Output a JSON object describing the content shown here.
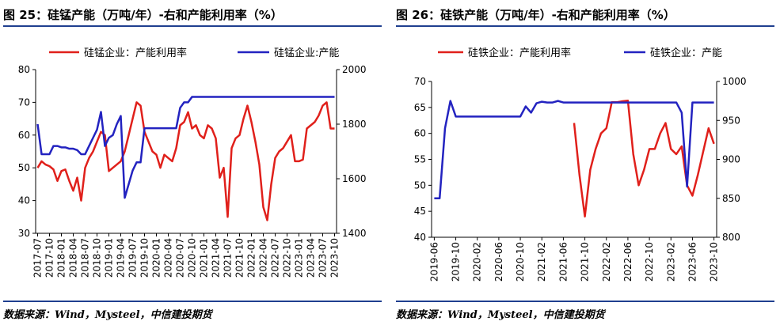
{
  "chart_data": [
    {
      "type": "line",
      "title": "图 25：硅锰产能（万吨/年）-右和产能利用率（%）",
      "source": "数据来源：Wind，Mysteel，中信建投期货",
      "categories": [
        "2017-07",
        null,
        null,
        "2017-10",
        null,
        null,
        "2018-01",
        null,
        null,
        "2018-04",
        null,
        null,
        "2018-07",
        null,
        null,
        "2018-10",
        null,
        null,
        "2019-01",
        null,
        null,
        "2019-04",
        null,
        null,
        "2019-07",
        null,
        null,
        "2019-10",
        null,
        null,
        "2020-01",
        null,
        null,
        "2020-04",
        null,
        null,
        "2020-07",
        null,
        null,
        "2020-10",
        null,
        null,
        "2021-01",
        null,
        null,
        "2021-04",
        null,
        null,
        "2021-07",
        null,
        null,
        "2021-10",
        null,
        null,
        "2022-01",
        null,
        null,
        "2022-04",
        null,
        null,
        "2022-07",
        null,
        null,
        "2022-10",
        null,
        null,
        "2023-01",
        null,
        null,
        "2023-04",
        null,
        null,
        "2023-07",
        null,
        null,
        "2023-10"
      ],
      "series": [
        {
          "name": "硅锰企业：产能利用率",
          "color": "#e0201b",
          "values": [
            50,
            52,
            51,
            50.5,
            49.5,
            46,
            49,
            49.5,
            46,
            43,
            47,
            40,
            50,
            53,
            55,
            58,
            61,
            60,
            49,
            50,
            51,
            52,
            55,
            60,
            65,
            70,
            69,
            61,
            58,
            55,
            54,
            50,
            54,
            53,
            52,
            56,
            63,
            64,
            67,
            62,
            63,
            60,
            59,
            63,
            62,
            59,
            47,
            50,
            35,
            56,
            59,
            60,
            65,
            69,
            64,
            58,
            51,
            38,
            34,
            45,
            53,
            55,
            56,
            58,
            60,
            52,
            52,
            52.5,
            62,
            63,
            64,
            66,
            69,
            70,
            62,
            62
          ]
        },
        {
          "name": "硅锰企业:产能",
          "color": "#2323c0",
          "axis": "y2",
          "values": [
            1800,
            1690,
            1690,
            1690,
            1720,
            1720,
            1715,
            1715,
            1710,
            1710,
            1705,
            1690,
            1690,
            1720,
            1750,
            1780,
            1845,
            1720,
            1750,
            1760,
            1800,
            1830,
            1530,
            1580,
            1630,
            1660,
            1660,
            1785,
            1785,
            1785,
            1785,
            1785,
            1785,
            1785,
            1785,
            1785,
            1860,
            1880,
            1880,
            1900,
            1900,
            1900,
            1900,
            1900,
            1900,
            1900,
            1900,
            1900,
            1900,
            1900,
            1900,
            1900,
            1900,
            1900,
            1900,
            1900,
            1900,
            1900,
            1900,
            1900,
            1900,
            1900,
            1900,
            1900,
            1900,
            1900,
            1900,
            1900,
            1900,
            1900,
            1900,
            1900,
            1900,
            1900,
            1900,
            1900
          ]
        }
      ],
      "ylim": [
        30,
        80
      ],
      "yticks": [
        30,
        40,
        50,
        60,
        70,
        80
      ],
      "y2lim": [
        1400,
        2000
      ],
      "y2ticks": [
        1400,
        1600,
        1800,
        2000
      ]
    },
    {
      "type": "line",
      "title": "图 26：硅铁产能（万吨/年）-右和产能利用率（%）",
      "source": "数据来源：Wind，Mysteel，中信建投期货",
      "categories": [
        "2019-06",
        null,
        null,
        null,
        "2019-10",
        null,
        null,
        null,
        "2020-02",
        null,
        null,
        null,
        "2020-06",
        null,
        null,
        null,
        "2020-10",
        null,
        null,
        null,
        "2021-02",
        null,
        null,
        null,
        "2021-06",
        null,
        null,
        null,
        "2021-10",
        null,
        null,
        null,
        "2022-02",
        null,
        null,
        null,
        "2022-06",
        null,
        null,
        null,
        "2022-10",
        null,
        null,
        null,
        "2023-02",
        null,
        null,
        null,
        "2023-06",
        null,
        null,
        null,
        "2023-10"
      ],
      "series": [
        {
          "name": "硅铁企业：产能利用率",
          "color": "#e0201b",
          "values": [
            null,
            null,
            null,
            null,
            null,
            null,
            null,
            null,
            null,
            null,
            null,
            null,
            null,
            null,
            null,
            null,
            null,
            null,
            null,
            null,
            null,
            null,
            null,
            null,
            null,
            null,
            62,
            52,
            44,
            53,
            57,
            60,
            61,
            66,
            66,
            66.2,
            66.3,
            56,
            50,
            53,
            57,
            57,
            60,
            62,
            57,
            56,
            57.5,
            50,
            48,
            52,
            56.5,
            61,
            58
          ]
        },
        {
          "name": "硅铁企业：产能",
          "color": "#2323c0",
          "axis": "y2",
          "values": [
            850,
            850,
            940,
            975,
            955,
            955,
            955,
            955,
            955,
            955,
            955,
            955,
            955,
            955,
            955,
            955,
            955,
            968,
            960,
            972,
            974,
            973,
            973,
            975,
            973,
            973,
            973,
            973,
            973,
            973,
            973,
            973,
            973,
            973,
            973,
            973,
            973,
            973,
            973,
            973,
            973,
            973,
            973,
            973,
            973,
            973,
            960,
            865,
            973,
            973,
            973,
            973,
            973
          ]
        }
      ],
      "ylim": [
        40,
        70
      ],
      "yticks": [
        40,
        45,
        50,
        55,
        60,
        65,
        70
      ],
      "y2lim": [
        800,
        1000
      ],
      "y2ticks": [
        800,
        850,
        900,
        950,
        1000
      ]
    }
  ]
}
